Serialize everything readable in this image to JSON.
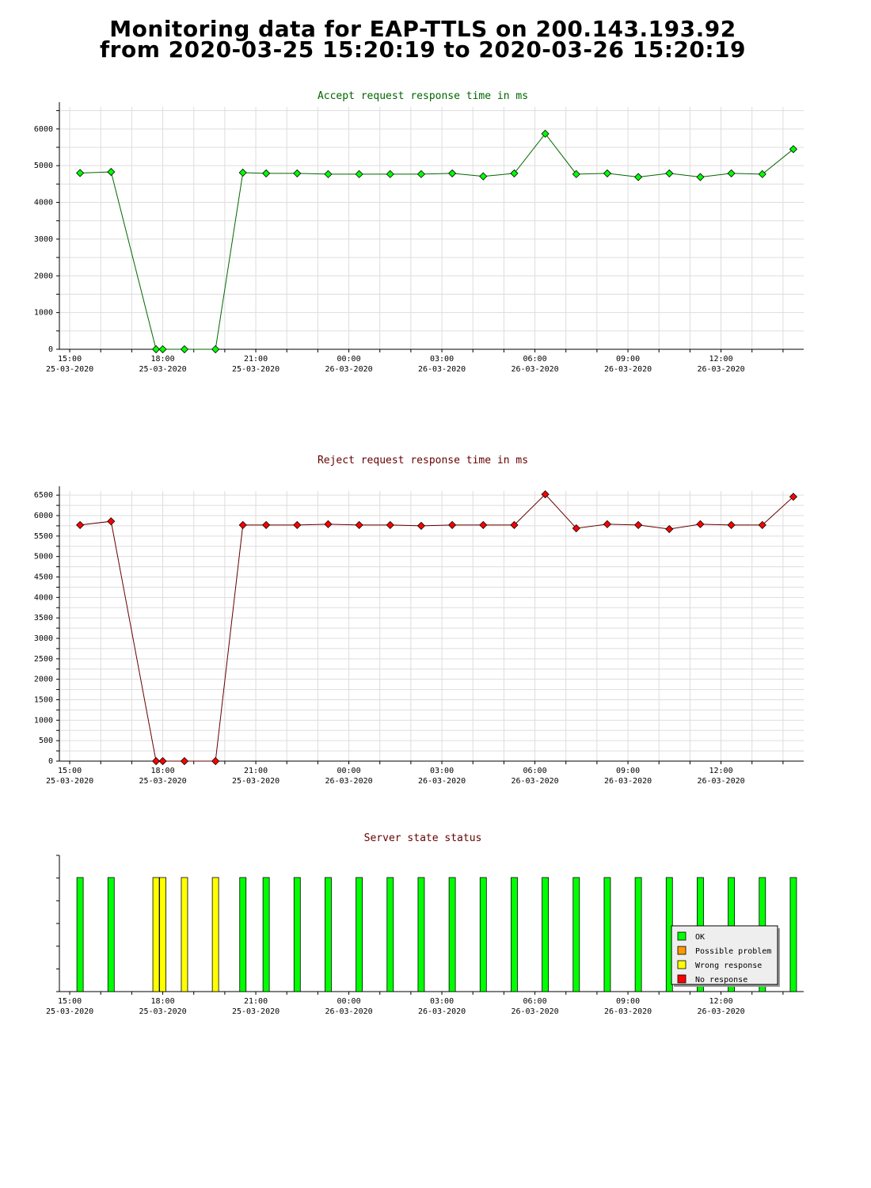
{
  "page": {
    "title_line1": "Monitoring data for EAP-TTLS on 200.143.193.92",
    "title_line2": "from 2020-03-25 15:20:19 to 2020-03-26 15:20:19"
  },
  "colors": {
    "accept_line": "#006600",
    "accept_marker": "#00ff00",
    "reject_line": "#660000",
    "reject_marker": "#ff0000",
    "ok": "#00ff00",
    "possible_problem": "#ff9900",
    "wrong_response": "#ffff00",
    "no_response": "#ff0000",
    "grid": "#dddddd"
  },
  "chart_data": [
    {
      "type": "line",
      "title": "Accept request response time in ms",
      "x_range": [
        "2020-03-25 14:40",
        "2020-03-26 14:40"
      ],
      "ylim": [
        0,
        6600
      ],
      "yticks": [
        0,
        1000,
        2000,
        3000,
        4000,
        5000,
        6000
      ],
      "xticks": [
        {
          "time": "2020-03-25 15:00",
          "line1": "15:00",
          "line2": "25-03-2020"
        },
        {
          "time": "2020-03-25 18:00",
          "line1": "18:00",
          "line2": "25-03-2020"
        },
        {
          "time": "2020-03-25 21:00",
          "line1": "21:00",
          "line2": "25-03-2020"
        },
        {
          "time": "2020-03-26 00:00",
          "line1": "00:00",
          "line2": "26-03-2020"
        },
        {
          "time": "2020-03-26 03:00",
          "line1": "03:00",
          "line2": "26-03-2020"
        },
        {
          "time": "2020-03-26 06:00",
          "line1": "06:00",
          "line2": "26-03-2020"
        },
        {
          "time": "2020-03-26 09:00",
          "line1": "09:00",
          "line2": "26-03-2020"
        },
        {
          "time": "2020-03-26 12:00",
          "line1": "12:00",
          "line2": "26-03-2020"
        }
      ],
      "grid": true,
      "series": [
        {
          "x": [
            "2020-03-25 15:20",
            "2020-03-25 16:20",
            "2020-03-25 17:47",
            "2020-03-25 18:00",
            "2020-03-25 18:42",
            "2020-03-25 19:42",
            "2020-03-25 20:35",
            "2020-03-25 21:20",
            "2020-03-25 22:20",
            "2020-03-25 23:20",
            "2020-03-26 00:20",
            "2020-03-26 01:20",
            "2020-03-26 02:20",
            "2020-03-26 03:20",
            "2020-03-26 04:20",
            "2020-03-26 05:20",
            "2020-03-26 06:20",
            "2020-03-26 07:20",
            "2020-03-26 08:20",
            "2020-03-26 09:20",
            "2020-03-26 10:20",
            "2020-03-26 11:20",
            "2020-03-26 12:20",
            "2020-03-26 13:20",
            "2020-03-26 14:20"
          ],
          "y": [
            4800,
            4830,
            0,
            0,
            0,
            0,
            4810,
            4790,
            4790,
            4770,
            4770,
            4770,
            4770,
            4790,
            4710,
            4790,
            5870,
            4770,
            4790,
            4690,
            4790,
            4690,
            4790,
            4770,
            5450
          ]
        }
      ]
    },
    {
      "type": "line",
      "title": "Reject request response time in ms",
      "x_range": [
        "2020-03-25 14:40",
        "2020-03-26 14:40"
      ],
      "ylim": [
        0,
        6600
      ],
      "yticks": [
        0,
        500,
        1000,
        1500,
        2000,
        2500,
        3000,
        3500,
        4000,
        4500,
        5000,
        5500,
        6000,
        6500
      ],
      "xticks": [
        {
          "time": "2020-03-25 15:00",
          "line1": "15:00",
          "line2": "25-03-2020"
        },
        {
          "time": "2020-03-25 18:00",
          "line1": "18:00",
          "line2": "25-03-2020"
        },
        {
          "time": "2020-03-25 21:00",
          "line1": "21:00",
          "line2": "25-03-2020"
        },
        {
          "time": "2020-03-26 00:00",
          "line1": "00:00",
          "line2": "26-03-2020"
        },
        {
          "time": "2020-03-26 03:00",
          "line1": "03:00",
          "line2": "26-03-2020"
        },
        {
          "time": "2020-03-26 06:00",
          "line1": "06:00",
          "line2": "26-03-2020"
        },
        {
          "time": "2020-03-26 09:00",
          "line1": "09:00",
          "line2": "26-03-2020"
        },
        {
          "time": "2020-03-26 12:00",
          "line1": "12:00",
          "line2": "26-03-2020"
        }
      ],
      "grid": true,
      "series": [
        {
          "x": [
            "2020-03-25 15:20",
            "2020-03-25 16:20",
            "2020-03-25 17:47",
            "2020-03-25 18:00",
            "2020-03-25 18:42",
            "2020-03-25 19:42",
            "2020-03-25 20:35",
            "2020-03-25 21:20",
            "2020-03-25 22:20",
            "2020-03-25 23:20",
            "2020-03-26 00:20",
            "2020-03-26 01:20",
            "2020-03-26 02:20",
            "2020-03-26 03:20",
            "2020-03-26 04:20",
            "2020-03-26 05:20",
            "2020-03-26 06:20",
            "2020-03-26 07:20",
            "2020-03-26 08:20",
            "2020-03-26 09:20",
            "2020-03-26 10:20",
            "2020-03-26 11:20",
            "2020-03-26 12:20",
            "2020-03-26 13:20",
            "2020-03-26 14:20"
          ],
          "y": [
            5770,
            5860,
            0,
            0,
            0,
            0,
            5770,
            5770,
            5770,
            5790,
            5770,
            5770,
            5750,
            5770,
            5770,
            5770,
            6520,
            5690,
            5790,
            5770,
            5670,
            5790,
            5770,
            5770,
            6460
          ]
        }
      ]
    },
    {
      "type": "bar",
      "title": "Server state status",
      "x_range": [
        "2020-03-25 14:40",
        "2020-03-26 14:40"
      ],
      "xticks": [
        {
          "time": "2020-03-25 15:00",
          "line1": "15:00",
          "line2": "25-03-2020"
        },
        {
          "time": "2020-03-25 18:00",
          "line1": "18:00",
          "line2": "25-03-2020"
        },
        {
          "time": "2020-03-25 21:00",
          "line1": "21:00",
          "line2": "25-03-2020"
        },
        {
          "time": "2020-03-26 00:00",
          "line1": "00:00",
          "line2": "26-03-2020"
        },
        {
          "time": "2020-03-26 03:00",
          "line1": "03:00",
          "line2": "26-03-2020"
        },
        {
          "time": "2020-03-26 06:00",
          "line1": "06:00",
          "line2": "26-03-2020"
        },
        {
          "time": "2020-03-26 09:00",
          "line1": "09:00",
          "line2": "26-03-2020"
        },
        {
          "time": "2020-03-26 12:00",
          "line1": "12:00",
          "line2": "26-03-2020"
        }
      ],
      "legend": {
        "placement": "bottom-right",
        "entries": [
          {
            "label": "OK",
            "color": "#00ff00"
          },
          {
            "label": "Possible problem",
            "color": "#ff9900"
          },
          {
            "label": "Wrong response",
            "color": "#ffff00"
          },
          {
            "label": "No response",
            "color": "#ff0000"
          }
        ]
      },
      "x": [
        "2020-03-25 15:20",
        "2020-03-25 16:20",
        "2020-03-25 17:47",
        "2020-03-25 18:00",
        "2020-03-25 18:42",
        "2020-03-25 19:42",
        "2020-03-25 20:35",
        "2020-03-25 21:20",
        "2020-03-25 22:20",
        "2020-03-25 23:20",
        "2020-03-26 00:20",
        "2020-03-26 01:20",
        "2020-03-26 02:20",
        "2020-03-26 03:20",
        "2020-03-26 04:20",
        "2020-03-26 05:20",
        "2020-03-26 06:20",
        "2020-03-26 07:20",
        "2020-03-26 08:20",
        "2020-03-26 09:20",
        "2020-03-26 10:20",
        "2020-03-26 11:20",
        "2020-03-26 12:20",
        "2020-03-26 13:20",
        "2020-03-26 14:20"
      ],
      "status": [
        "OK",
        "OK",
        "Wrong response",
        "Wrong response",
        "Wrong response",
        "Wrong response",
        "OK",
        "OK",
        "OK",
        "OK",
        "OK",
        "OK",
        "OK",
        "OK",
        "OK",
        "OK",
        "OK",
        "OK",
        "OK",
        "OK",
        "OK",
        "OK",
        "OK",
        "OK",
        "OK"
      ]
    }
  ]
}
